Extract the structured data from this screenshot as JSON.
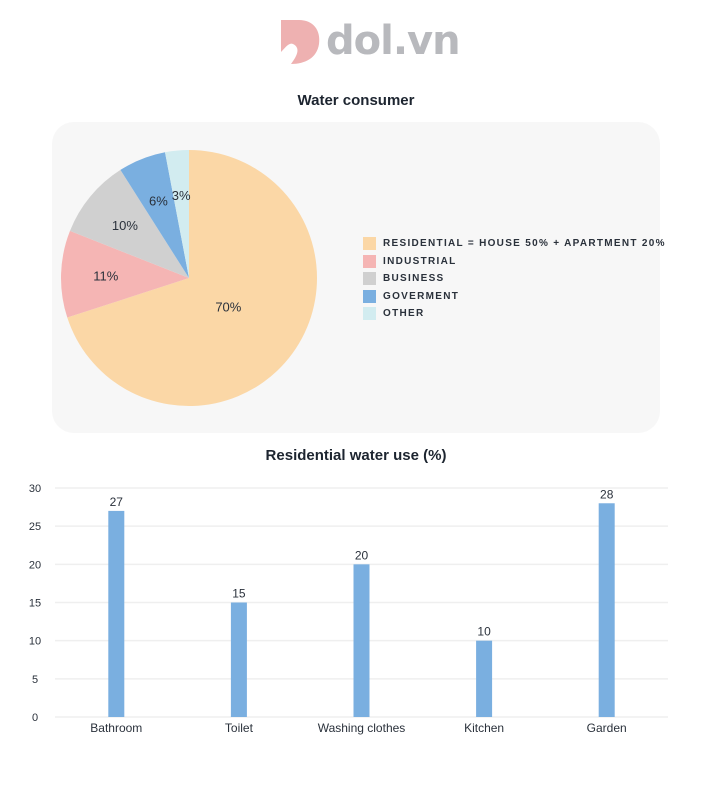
{
  "logo": {
    "text": "dol.vn"
  },
  "chart_data": [
    {
      "type": "pie",
      "title": "Water consumer",
      "slices": [
        {
          "label": "RESIDENTIAL = HOUSE 50% + APARTMENT 20%",
          "value": 70,
          "data_label": "70%",
          "color": "#fbd7a6"
        },
        {
          "label": "INDUSTRIAL",
          "value": 11,
          "data_label": "11%",
          "color": "#f5b5b4"
        },
        {
          "label": "BUSINESS",
          "value": 10,
          "data_label": "10%",
          "color": "#d0d0d0"
        },
        {
          "label": "GOVERMENT",
          "value": 6,
          "data_label": "6%",
          "color": "#7aafe0"
        },
        {
          "label": "OTHER",
          "value": 3,
          "data_label": "3%",
          "color": "#d2ecf0"
        }
      ],
      "legend": "right"
    },
    {
      "type": "bar",
      "title": "Residential water use (%)",
      "categories": [
        "Bathroom",
        "Toilet",
        "Washing clothes",
        "Kitchen",
        "Garden"
      ],
      "values": [
        27,
        15,
        20,
        10,
        28
      ],
      "ylim": [
        0,
        30
      ],
      "yticks": [
        0,
        5,
        10,
        15,
        20,
        25,
        30
      ],
      "grid": true,
      "color": "#7aafe0"
    }
  ]
}
